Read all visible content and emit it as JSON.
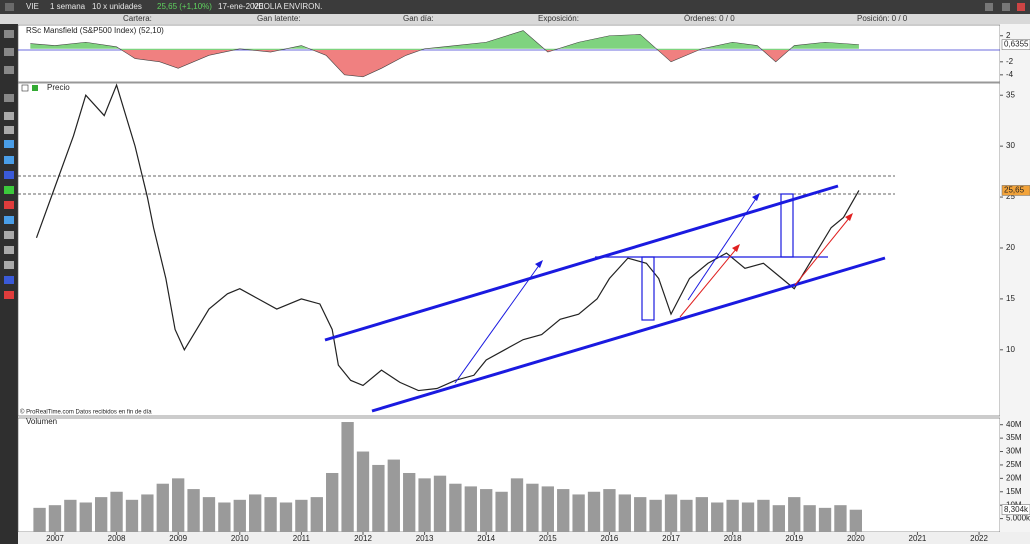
{
  "toolbar": {
    "symbol": "VIE",
    "period": "1 semana",
    "units": "10 x unidades",
    "quote": "25,65 (+1,10%)",
    "date": "17-ene-2020",
    "name": "VEOLIA ENVIRON."
  },
  "header": {
    "portfolio": "Cartera:",
    "unrealized": "Gan latente:",
    "daily": "Gan día:",
    "exposure": "Exposición:",
    "orders": "Órdenes: 0 / 0",
    "position": "Posición: 0 / 0"
  },
  "footnote": "© ProRealTime.com Datos recibidos en fin de día",
  "chart_data": [
    {
      "type": "area",
      "title": "RSc Mansfield (S&P500 Index) (52,10)",
      "x": [
        2006.6,
        2007,
        2007.5,
        2008,
        2008.3,
        2008.7,
        2009,
        2009.5,
        2010,
        2010.5,
        2011,
        2011.4,
        2011.7,
        2012,
        2012.3,
        2012.7,
        2013,
        2013.5,
        2014,
        2014.6,
        2015,
        2015.5,
        2016,
        2016.5,
        2017,
        2017.5,
        2018,
        2018.4,
        2018.7,
        2019,
        2019.5,
        2020.05
      ],
      "values": [
        0.8,
        0.5,
        1,
        0.3,
        -1.5,
        -2,
        -3,
        -1,
        0,
        -0.5,
        0.5,
        -1,
        -4,
        -4.3,
        -3,
        -1,
        0,
        0.5,
        1,
        2.8,
        -0.5,
        1,
        2,
        2.2,
        -2,
        0,
        1,
        0.5,
        -2,
        0.5,
        1,
        0.6355
      ],
      "pos_color": "#7fd37f",
      "neg_color": "#f08080",
      "xlim": [
        2006.4,
        2022.34
      ],
      "ylim": [
        -5.1,
        3.65
      ],
      "yticks": [
        2,
        -2,
        -4
      ],
      "current_tick": {
        "value": 0.6355,
        "label": "0,6355"
      }
    },
    {
      "type": "line",
      "title": "Precio",
      "x": [
        2006.7,
        2007,
        2007.3,
        2007.5,
        2007.8,
        2008,
        2008.3,
        2008.5,
        2008.6,
        2008.8,
        2008.95,
        2009.1,
        2009.3,
        2009.5,
        2009.8,
        2010,
        2010.3,
        2010.6,
        2011,
        2011.3,
        2011.5,
        2011.6,
        2011.8,
        2012,
        2012.3,
        2012.6,
        2012.9,
        2013.2,
        2013.5,
        2013.8,
        2014,
        2014.3,
        2014.6,
        2014.9,
        2015.2,
        2015.5,
        2015.8,
        2016,
        2016.3,
        2016.6,
        2016.8,
        2017,
        2017.3,
        2017.6,
        2017.9,
        2018.2,
        2018.5,
        2018.8,
        2019,
        2019.3,
        2019.6,
        2019.8,
        2020.05
      ],
      "values": [
        21,
        26,
        31,
        35,
        33,
        36,
        30,
        25,
        22,
        17,
        12,
        10,
        12,
        14,
        15.5,
        16,
        15,
        14,
        15,
        14.5,
        12,
        8.5,
        7,
        6.5,
        8,
        6.8,
        6,
        6.2,
        7,
        7.5,
        9,
        10,
        11,
        11.5,
        13,
        13.5,
        15,
        17,
        19,
        18.5,
        17,
        13.5,
        17,
        18.5,
        19.5,
        18,
        18.5,
        17,
        16,
        19,
        22,
        23,
        25.65
      ],
      "color": "#222222",
      "xlim": [
        2006.4,
        2022.34
      ],
      "ylim": [
        3.5,
        36.2
      ],
      "yticks": [
        35,
        30,
        25,
        20,
        15,
        10
      ],
      "current_tick": {
        "value": 25.65,
        "label": "25,65"
      }
    },
    {
      "type": "bar",
      "title": "Volumen",
      "x": [
        2006.75,
        2007,
        2007.25,
        2007.5,
        2007.75,
        2008,
        2008.25,
        2008.5,
        2008.75,
        2009,
        2009.25,
        2009.5,
        2009.75,
        2010,
        2010.25,
        2010.5,
        2010.75,
        2011,
        2011.25,
        2011.5,
        2011.75,
        2012,
        2012.25,
        2012.5,
        2012.75,
        2013,
        2013.25,
        2013.5,
        2013.75,
        2014,
        2014.25,
        2014.5,
        2014.75,
        2015,
        2015.25,
        2015.5,
        2015.75,
        2016,
        2016.25,
        2016.5,
        2016.75,
        2017,
        2017.25,
        2017.5,
        2017.75,
        2018,
        2018.25,
        2018.5,
        2018.75,
        2019,
        2019.25,
        2019.5,
        2019.75,
        2020
      ],
      "values": [
        9,
        10,
        12,
        11,
        13,
        15,
        12,
        14,
        18,
        20,
        16,
        13,
        11,
        12,
        14,
        13,
        11,
        12,
        13,
        22,
        41,
        30,
        25,
        27,
        22,
        20,
        21,
        18,
        17,
        16,
        15,
        20,
        18,
        17,
        16,
        14,
        15,
        16,
        14,
        13,
        12,
        14,
        12,
        13,
        11,
        12,
        11,
        12,
        10,
        13,
        10,
        9,
        10,
        8.304
      ],
      "color": "#9a9a9a",
      "xlim": [
        2006.4,
        2022.34
      ],
      "ylim": [
        0,
        42.5
      ],
      "yticks": [
        {
          "value": 40,
          "label": "40M"
        },
        {
          "value": 35,
          "label": "35M"
        },
        {
          "value": 30,
          "label": "30M"
        },
        {
          "value": 25,
          "label": "25M"
        },
        {
          "value": 20,
          "label": "20M"
        },
        {
          "value": 15,
          "label": "15M"
        },
        {
          "value": 10,
          "label": "10M"
        },
        {
          "value": 5,
          "label": "5.000k"
        }
      ],
      "current_tick": {
        "value": 8.304,
        "label": "8,304k"
      },
      "xticks": [
        2007,
        2008,
        2009,
        2010,
        2011,
        2012,
        2013,
        2014,
        2015,
        2016,
        2017,
        2018,
        2019,
        2020,
        2021,
        2022
      ]
    }
  ]
}
